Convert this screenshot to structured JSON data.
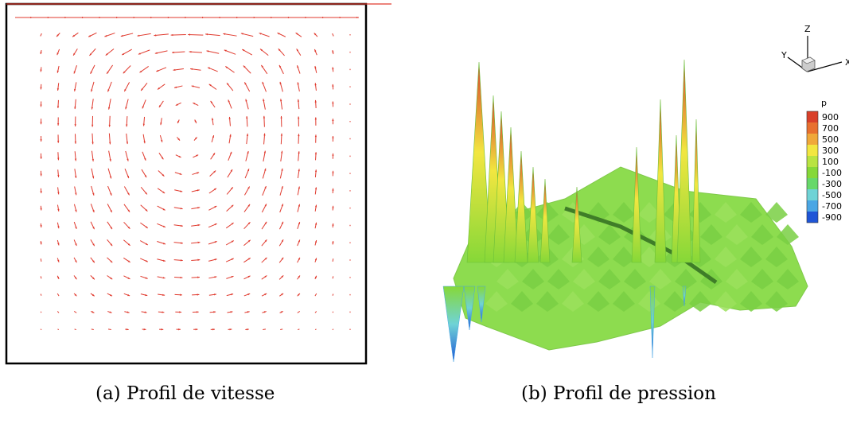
{
  "panel_a": {
    "caption": "(a) Profil de vitesse",
    "grid_size": 20,
    "vector_color": "#e03a2e",
    "frame_color": "#000000",
    "lid_velocity": 1.0
  },
  "panel_b": {
    "caption": "(b) Profil de pression",
    "legend": {
      "title": "p",
      "levels": [
        "900",
        "700",
        "500",
        "300",
        "100",
        "-100",
        "-300",
        "-500",
        "-700",
        "-900"
      ],
      "colors": [
        "#d9402a",
        "#e8702f",
        "#f0a83a",
        "#f2e640",
        "#b9e341",
        "#86d838",
        "#67d86a",
        "#6fd3d6",
        "#4aa6e4",
        "#1f55d6"
      ]
    },
    "axes": {
      "z": "Z",
      "y": "Y",
      "x": "X"
    },
    "surface_base_color": "#8ddc4f"
  }
}
